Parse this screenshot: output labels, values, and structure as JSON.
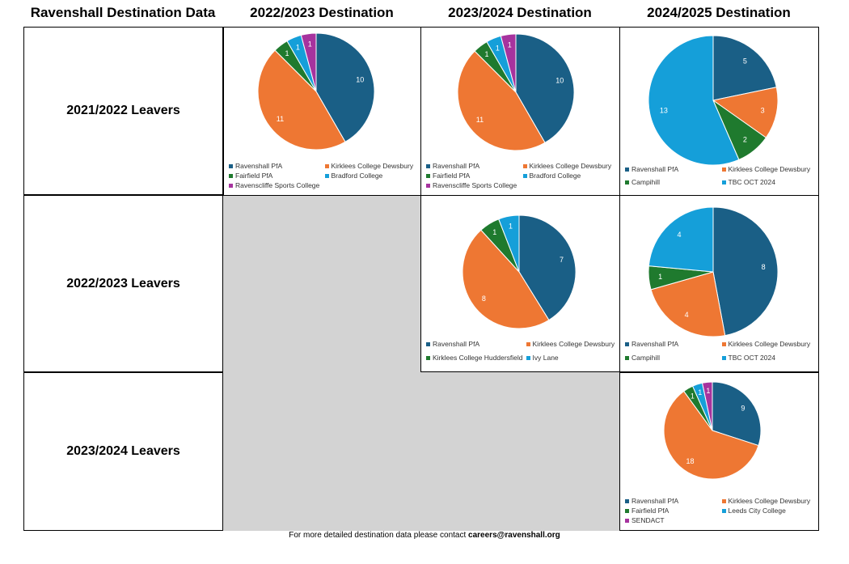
{
  "headers": {
    "corner": "Ravenshall Destination Data",
    "col1": "2022/2023 Destination",
    "col2": "2023/2024 Destination",
    "col3": "2024/2025 Destination"
  },
  "rows": {
    "r1": "2021/2022 Leavers",
    "r2": "2022/2023 Leavers",
    "r3": "2023/2024 Leavers"
  },
  "footer": {
    "text": "For more detailed destination data please contact ",
    "email": "careers@ravenshall.org"
  },
  "colors": {
    "Ravenshall PfA": "#1a5f86",
    "Kirklees College Dewsbury": "#ee7733",
    "Fairfield PfA": "#1f7a2e",
    "Campihill": "#1f7a2e",
    "Kirklees College Huddersfield": "#1f7a2e",
    "Bradford College": "#159fd9",
    "Ivy Lane": "#159fd9",
    "TBC OCT 2024": "#159fd9",
    "Leeds City College": "#159fd9",
    "Ravenscliffe Sports College": "#a6339e",
    "SENDACT": "#a6339e"
  },
  "chart_data": [
    {
      "id": "r1c1",
      "type": "pie",
      "labels": [
        "Ravenshall PfA",
        "Kirklees College Dewsbury",
        "Fairfield PfA",
        "Bradford College",
        "Ravenscliffe Sports College"
      ],
      "values": [
        10,
        11,
        1,
        1,
        1
      ]
    },
    {
      "id": "r1c2",
      "type": "pie",
      "labels": [
        "Ravenshall PfA",
        "Kirklees College Dewsbury",
        "Fairfield PfA",
        "Bradford College",
        "Ravenscliffe Sports College"
      ],
      "values": [
        10,
        11,
        1,
        1,
        1
      ]
    },
    {
      "id": "r1c3",
      "type": "pie",
      "labels": [
        "Ravenshall PfA",
        "Kirklees College Dewsbury",
        "Campihill",
        "TBC OCT 2024"
      ],
      "values": [
        5,
        3,
        2,
        13
      ]
    },
    {
      "id": "r2c2",
      "type": "pie",
      "labels": [
        "Ravenshall PfA",
        "Kirklees College Dewsbury",
        "Kirklees College Huddersfield",
        "Ivy Lane"
      ],
      "values": [
        7,
        8,
        1,
        1
      ]
    },
    {
      "id": "r2c3",
      "type": "pie",
      "labels": [
        "Ravenshall PfA",
        "Kirklees College Dewsbury",
        "Campihill",
        "TBC OCT 2024"
      ],
      "values": [
        8,
        4,
        1,
        4
      ]
    },
    {
      "id": "r3c3",
      "type": "pie",
      "labels": [
        "Ravenshall PfA",
        "Kirklees College Dewsbury",
        "Fairfield PfA",
        "Leeds City College",
        "SENDACT"
      ],
      "values": [
        9,
        18,
        1,
        1,
        1
      ]
    }
  ]
}
